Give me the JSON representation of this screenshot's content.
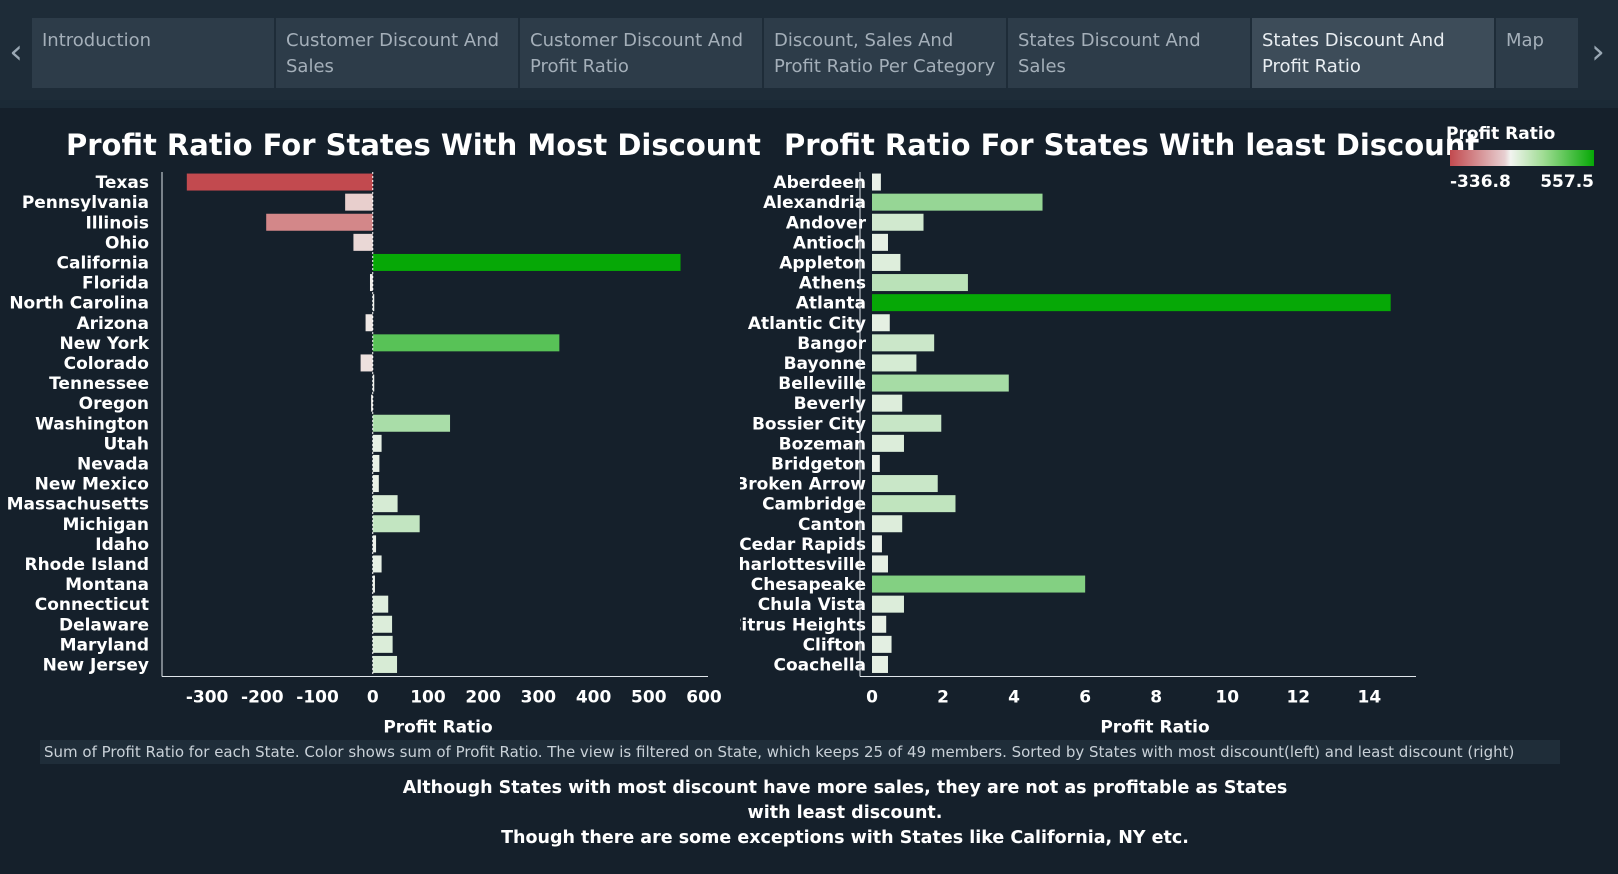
{
  "tabs": [
    {
      "label": "Introduction"
    },
    {
      "label": "Customer Discount And Sales"
    },
    {
      "label": "Customer Discount And Profit Ratio"
    },
    {
      "label": "Discount, Sales And Profit Ratio Per Category"
    },
    {
      "label": "States Discount And Sales"
    },
    {
      "label": "States Discount And Profit Ratio"
    },
    {
      "label": "Map"
    }
  ],
  "active_tab": 5,
  "nav": {
    "prev_icon": "chevron-left-icon",
    "next_icon": "chevron-right-icon"
  },
  "legend": {
    "title": "Profit Ratio",
    "min_label": "-336.8",
    "max_label": "557.5"
  },
  "colors": {
    "negative": "#c24a4f",
    "neutral": "#f2f4f0",
    "positive": "#06a806"
  },
  "caption": "Sum of Profit Ratio for each State.  Color shows sum of Profit Ratio. The view is filtered on State, which keeps 25 of 49 members. Sorted by States with most discount(left) and least discount (right)",
  "note": {
    "line1": "Although States with most discount have more sales, they are not as profitable as States",
    "line2": "with least discount.",
    "line3": "Though there are some exceptions with States like California, NY etc."
  },
  "chart_data": [
    {
      "type": "bar",
      "orientation": "horizontal",
      "title": "Profit Ratio For States With Most Discount",
      "xlabel": "Profit Ratio",
      "xlim": [
        -360,
        600
      ],
      "xticks": [
        -300,
        -200,
        -100,
        0,
        100,
        200,
        300,
        400,
        500,
        600
      ],
      "categories": [
        "Texas",
        "Pennsylvania",
        "Illinois",
        "Ohio",
        "California",
        "Florida",
        "North Carolina",
        "Arizona",
        "New York",
        "Colorado",
        "Tennessee",
        "Oregon",
        "Washington",
        "Utah",
        "Nevada",
        "New Mexico",
        "Massachusetts",
        "Michigan",
        "Idaho",
        "Rhode Island",
        "Montana",
        "Connecticut",
        "Delaware",
        "Maryland",
        "New Jersey"
      ],
      "values": [
        -336.8,
        -50,
        -193,
        -35,
        557.5,
        -5,
        2,
        -13,
        338,
        -22,
        2,
        -3,
        140,
        16,
        12,
        11,
        45,
        85,
        6,
        16,
        4,
        28,
        35,
        36,
        44
      ],
      "color_domain": [
        -336.8,
        557.5
      ]
    },
    {
      "type": "bar",
      "orientation": "horizontal",
      "title": "Profit Ratio For States With least Discount",
      "xlabel": "Profit Ratio",
      "xlim": [
        0,
        15.2
      ],
      "xticks": [
        0,
        2,
        4,
        6,
        8,
        10,
        12,
        14
      ],
      "categories": [
        "Aberdeen",
        "Alexandria",
        "Andover",
        "Antioch",
        "Appleton",
        "Athens",
        "Atlanta",
        "Atlantic City",
        "Bangor",
        "Bayonne",
        "Belleville",
        "Beverly",
        "Bossier City",
        "Bozeman",
        "Bridgeton",
        "Broken Arrow",
        "Cambridge",
        "Canton",
        "Cedar Rapids",
        "Charlottesville",
        "Chesapeake",
        "Chula Vista",
        "Citrus Heights",
        "Clifton",
        "Coachella"
      ],
      "values": [
        0.25,
        4.8,
        1.45,
        0.45,
        0.8,
        2.7,
        14.6,
        0.5,
        1.75,
        1.25,
        3.85,
        0.85,
        1.95,
        0.9,
        0.22,
        1.85,
        2.35,
        0.85,
        0.28,
        0.45,
        6.0,
        0.9,
        0.4,
        0.55,
        0.45
      ],
      "color_domain": [
        0,
        14.6
      ]
    }
  ]
}
